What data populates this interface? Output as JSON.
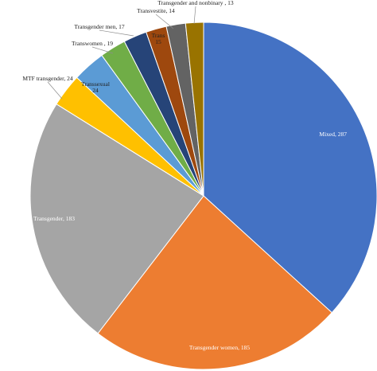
{
  "chart_data": {
    "type": "pie",
    "title": "",
    "slices": [
      {
        "label": "Mixed",
        "value": 287,
        "text": "Mixed, 287",
        "color": "#4472C4",
        "label_color": "#ffffff"
      },
      {
        "label": "Transgender women",
        "value": 185,
        "text": "Transgender women, 185",
        "color": "#ED7D31",
        "label_color": "#ffffff"
      },
      {
        "label": "Transgender",
        "value": 183,
        "text": "Transgender, 183",
        "color": "#A5A5A5",
        "label_color": "#ffffff"
      },
      {
        "label": "MTF transgender",
        "value": 24,
        "text": "MTF transgender, 24",
        "color": "#FFC000",
        "label_color": "#222222"
      },
      {
        "label": "Transsexual",
        "value": 24,
        "text": "Transsexual, 24",
        "color": "#5B9BD5",
        "label_color": "#222222"
      },
      {
        "label": "Transwomen",
        "value": 19,
        "text": "Transwomen , 19",
        "color": "#70AD47",
        "label_color": "#222222"
      },
      {
        "label": "Transgender men",
        "value": 17,
        "text": "Transgender men, 17",
        "color": "#264478",
        "label_color": "#222222"
      },
      {
        "label": "Trans",
        "value": 15,
        "text": "Trans, 15",
        "color": "#9E480E",
        "label_color": "#222222"
      },
      {
        "label": "Transvestite",
        "value": 14,
        "text": "Transvestite, 14",
        "color": "#636363",
        "label_color": "#222222"
      },
      {
        "label": "Transgender and nonbinary",
        "value": 13,
        "text": "Transgender and nonbinary , 13",
        "color": "#997300",
        "label_color": "#222222"
      }
    ]
  }
}
